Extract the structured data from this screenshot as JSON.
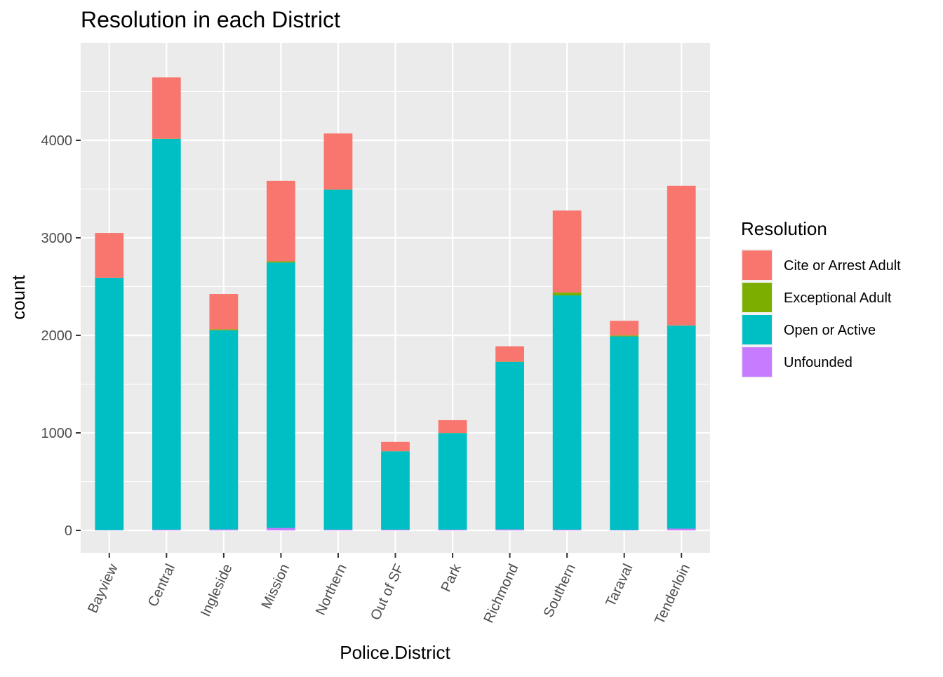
{
  "chart_data": {
    "type": "bar",
    "stacked": true,
    "title": "Resolution in each District",
    "xlabel": "Police.District",
    "ylabel": "count",
    "ylim": [
      -230,
      5000
    ],
    "yticks": [
      0,
      1000,
      2000,
      3000,
      4000
    ],
    "ytick_labels": [
      "0",
      "1000",
      "2000",
      "3000",
      "4000"
    ],
    "grid": true,
    "legend_position": "right",
    "legend_title": "Resolution",
    "categories": [
      "Bayview",
      "Central",
      "Ingleside",
      "Mission",
      "Northern",
      "Out of SF",
      "Park",
      "Richmond",
      "Southern",
      "Taraval",
      "Tenderloin"
    ],
    "series": [
      {
        "name": "Unfounded",
        "color": "#C77CFF",
        "values": [
          3,
          8,
          10,
          25,
          8,
          8,
          8,
          10,
          8,
          4,
          18
        ]
      },
      {
        "name": "Open or Active",
        "color": "#00BFC4",
        "values": [
          2587,
          4007,
          2042,
          2722,
          3485,
          803,
          990,
          1718,
          2402,
          1985,
          2082
        ]
      },
      {
        "name": "Exceptional Adult",
        "color": "#7CAE00",
        "values": [
          1,
          2,
          10,
          12,
          2,
          1,
          2,
          2,
          30,
          10,
          2
        ]
      },
      {
        "name": "Cite or Arrest Adult",
        "color": "#F8766D",
        "values": [
          459,
          628,
          362,
          825,
          575,
          96,
          130,
          158,
          840,
          150,
          1432
        ]
      }
    ],
    "legend_order": [
      "Cite or Arrest Adult",
      "Exceptional Adult",
      "Open or Active",
      "Unfounded"
    ]
  }
}
